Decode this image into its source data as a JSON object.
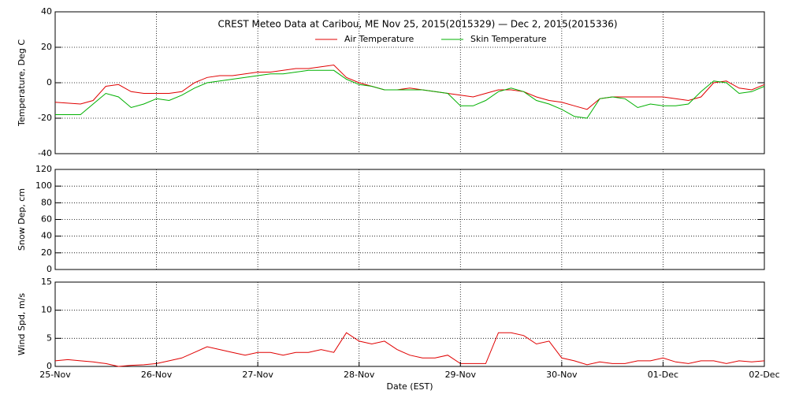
{
  "chart_data": [
    {
      "type": "line",
      "title": "CREST Meteo Data at Caribou, ME   Nov 25, 2015(2015329) — Dec  2, 2015(2015336)",
      "ylabel": "Temperature, Deg C",
      "ylim": [
        -40,
        40
      ],
      "yticks": [
        -40,
        -20,
        0,
        20,
        40
      ],
      "grid": true,
      "x": [
        0,
        0.125,
        0.25,
        0.375,
        0.5,
        0.625,
        0.75,
        0.875,
        1,
        1.125,
        1.25,
        1.375,
        1.5,
        1.625,
        1.75,
        1.875,
        2,
        2.125,
        2.25,
        2.375,
        2.5,
        2.625,
        2.75,
        2.875,
        3,
        3.125,
        3.25,
        3.375,
        3.5,
        3.625,
        3.75,
        3.875,
        4,
        4.125,
        4.25,
        4.375,
        4.5,
        4.625,
        4.75,
        4.875,
        5,
        5.125,
        5.25,
        5.375,
        5.5,
        5.625,
        5.75,
        5.875,
        6,
        6.125,
        6.25,
        6.375,
        6.5,
        6.625,
        6.75,
        6.875,
        7
      ],
      "series": [
        {
          "name": "Air Temperature",
          "color": "#e00000",
          "values": [
            -11,
            -11.5,
            -12,
            -10,
            -2,
            -1,
            -5,
            -6,
            -6,
            -6,
            -5,
            0,
            3,
            4,
            4,
            5,
            6,
            6,
            7,
            8,
            8,
            9,
            10,
            3,
            0,
            -2,
            -4,
            -4,
            -3,
            -4,
            -5,
            -6,
            -7,
            -8,
            -6,
            -4,
            -4,
            -5,
            -8,
            -10,
            -11,
            -13,
            -15,
            -9,
            -8,
            -8,
            -8,
            -8,
            -8,
            -9,
            -10,
            -8,
            0,
            1,
            -3,
            -4,
            -1
          ]
        },
        {
          "name": "Skin Temperature",
          "color": "#00b000",
          "values": [
            -18,
            -18,
            -18,
            -12,
            -6,
            -8,
            -14,
            -12,
            -9,
            -10,
            -7,
            -3,
            0,
            1,
            2,
            3,
            4,
            5,
            5,
            6,
            7,
            7,
            7,
            2,
            -1,
            -2,
            -4,
            -4,
            -4,
            -4,
            -5,
            -6,
            -13,
            -13,
            -10,
            -5,
            -3,
            -5,
            -10,
            -12,
            -15,
            -19,
            -20,
            -9,
            -8,
            -9,
            -14,
            -12,
            -13,
            -13,
            -12,
            -5,
            1,
            0,
            -6,
            -5,
            -2
          ]
        }
      ]
    },
    {
      "type": "line",
      "ylabel": "Snow Dep, cm",
      "ylim": [
        0,
        120
      ],
      "yticks": [
        0,
        20,
        40,
        60,
        80,
        100,
        120
      ],
      "grid": true
    },
    {
      "type": "line",
      "ylabel": "Wind Spd, m/s",
      "xlabel": "Date (EST)",
      "ylim": [
        0,
        15
      ],
      "yticks": [
        0,
        5,
        10,
        15
      ],
      "grid": true,
      "xlim": [
        0,
        7
      ],
      "xticks": [
        {
          "value": 0,
          "label": "25-Nov"
        },
        {
          "value": 1,
          "label": "26-Nov"
        },
        {
          "value": 2,
          "label": "27-Nov"
        },
        {
          "value": 3,
          "label": "28-Nov"
        },
        {
          "value": 4,
          "label": "29-Nov"
        },
        {
          "value": 5,
          "label": "30-Nov"
        },
        {
          "value": 6,
          "label": "01-Dec"
        },
        {
          "value": 7,
          "label": "02-Dec"
        }
      ],
      "color": "#e00000",
      "x": [
        0,
        0.125,
        0.25,
        0.375,
        0.5,
        0.625,
        0.75,
        0.875,
        1,
        1.125,
        1.25,
        1.375,
        1.5,
        1.625,
        1.75,
        1.875,
        2,
        2.125,
        2.25,
        2.375,
        2.5,
        2.625,
        2.75,
        2.875,
        3,
        3.125,
        3.25,
        3.375,
        3.5,
        3.625,
        3.75,
        3.875,
        4,
        4.125,
        4.25,
        4.375,
        4.5,
        4.625,
        4.75,
        4.875,
        5,
        5.125,
        5.25,
        5.375,
        5.5,
        5.625,
        5.75,
        5.875,
        6,
        6.125,
        6.25,
        6.375,
        6.5,
        6.625,
        6.75,
        6.875,
        7
      ],
      "values": [
        1,
        1.2,
        1,
        0.8,
        0.5,
        0,
        0.2,
        0.3,
        0.5,
        1,
        1.5,
        2.5,
        3.5,
        3,
        2.5,
        2,
        2.5,
        2.5,
        2,
        2.5,
        2.5,
        3,
        2.5,
        6,
        4.5,
        4,
        4.5,
        3,
        2,
        1.5,
        1.5,
        2,
        0.5,
        0.5,
        0.5,
        6,
        6,
        5.5,
        4,
        4.5,
        1.5,
        1,
        0.3,
        0.8,
        0.5,
        0.5,
        1,
        1,
        1.5,
        0.8,
        0.5,
        1,
        1,
        0.5,
        1,
        0.8,
        1
      ]
    }
  ]
}
